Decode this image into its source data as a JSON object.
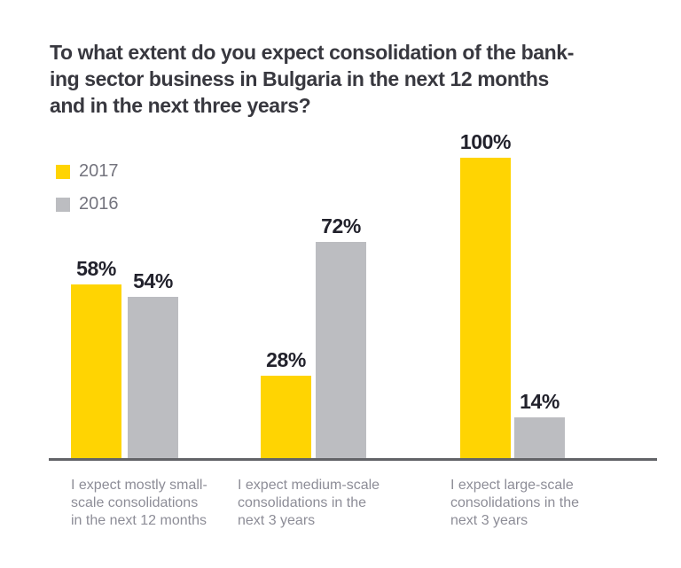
{
  "title": {
    "lines": [
      "To what extent do you expect consolidation of the bank-",
      "ing sector business in Bulgaria in the next 12 months",
      "and in the next three years?"
    ]
  },
  "legend": {
    "items": [
      {
        "label": "2017",
        "color": "#FFD402"
      },
      {
        "label": "2016",
        "color": "#BCBDC1"
      }
    ]
  },
  "colors": {
    "accent_yellow": "#FFD402",
    "bar_gray": "#BCBDC1",
    "axis_line": "#626367",
    "title_text": "#38383f",
    "value_text": "#22222c",
    "category_text": "#8d8d97"
  },
  "chart_data": {
    "type": "bar",
    "title": "To what extent do you expect consolidation of the banking sector business in Bulgaria in the next 12 months and in the next three years?",
    "categories": [
      "I expect mostly small-scale consolidations in the next 12 months",
      "I expect medium-scale consolidations in the next 3 years",
      "I expect large-scale consolidations in the next 3 years"
    ],
    "category_lines": [
      [
        "I expect mostly small-",
        "scale consolidations",
        "in the next 12 months"
      ],
      [
        "I expect medium-scale",
        "consolidations in the",
        "next 3 years"
      ],
      [
        "I expect large-scale",
        "consolidations in the",
        "next 3 years"
      ]
    ],
    "series": [
      {
        "name": "2017",
        "color": "#FFD402",
        "values": [
          58,
          28,
          100
        ]
      },
      {
        "name": "2016",
        "color": "#BCBDC1",
        "values": [
          54,
          72,
          14
        ]
      }
    ],
    "value_format": "percent",
    "xlabel": "",
    "ylabel": "",
    "ylim": [
      0,
      100
    ],
    "grid": false,
    "legend_position": "top-left"
  }
}
